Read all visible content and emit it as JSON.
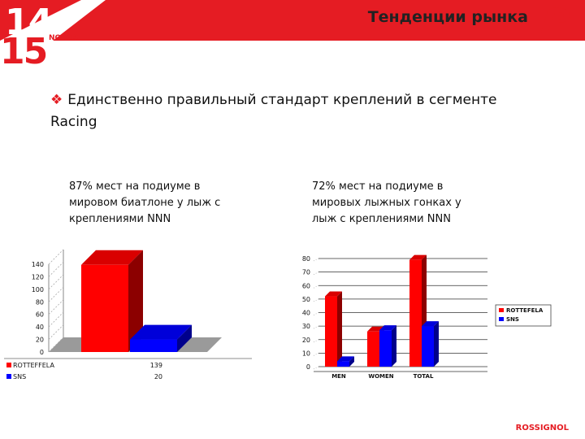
{
  "header": {
    "title": "Тенденции рынка",
    "badge_top": "14",
    "badge_bottom": "15",
    "badge_sub": "NOBOS"
  },
  "bullet_text": "Единственно правильный стандарт креплений в сегменте Racing",
  "footer_brand": "ROSSIGNOL",
  "left_caption": "87% мест на подиуме в мировом биатлоне у лыж с креплениями NNN",
  "right_caption": "72% мест на подиуме в мировых лыжных гонках у лыж с креплениями NNN",
  "chart_data": [
    {
      "type": "bar",
      "categories": [
        ""
      ],
      "series": [
        {
          "name": "ROTTEFFELA",
          "values": [
            139
          ],
          "color": "#ff0000"
        },
        {
          "name": "SNS",
          "values": [
            20
          ],
          "color": "#0000ff"
        }
      ],
      "ylim": [
        0,
        140
      ],
      "yticks": [
        "0",
        "20",
        "40",
        "60",
        "80",
        "100",
        "120",
        "140"
      ],
      "table": [
        {
          "name": "ROTTEFFELA",
          "value": "139"
        },
        {
          "name": "SNS",
          "value": "20"
        }
      ]
    },
    {
      "type": "bar",
      "categories": [
        "MEN",
        "WOMEN",
        "TOTAL"
      ],
      "series": [
        {
          "name": "ROTTEFELA",
          "values": [
            52,
            26,
            79
          ],
          "color": "#ff0000"
        },
        {
          "name": "SNS",
          "values": [
            4,
            27,
            30
          ],
          "color": "#0000ff"
        }
      ],
      "ylim": [
        0,
        80
      ],
      "yticks": [
        "0",
        "10",
        "20",
        "30",
        "40",
        "50",
        "60",
        "70",
        "80"
      ],
      "legend": "right"
    }
  ]
}
